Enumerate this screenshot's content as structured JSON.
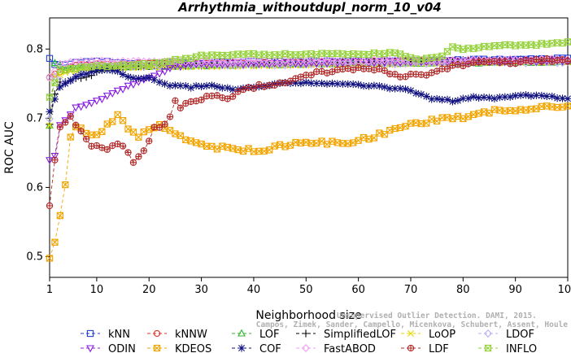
{
  "chart_data": {
    "type": "line",
    "title": "Arrhythmia_withoutdupl_norm_10_v04",
    "xlabel": "Neighborhood size",
    "ylabel": "ROC AUC",
    "xlim": [
      1,
      100
    ],
    "ylim": [
      0.47,
      0.845
    ],
    "xticks": [
      1,
      10,
      20,
      30,
      40,
      50,
      60,
      70,
      80,
      90,
      100
    ],
    "yticks": [
      0.5,
      0.6,
      0.7,
      0.8
    ],
    "grid": false,
    "legend_position": "bottom",
    "watermark": [
      "Campos, Zimek, Sander, Campello, Micenkova, Schubert, Assent, Houle",
      "Unsupervised Outlier Detection. DAMI, 2015."
    ],
    "series": [
      {
        "name": "kNN",
        "color": "#1f3fd6",
        "marker": "square",
        "dash": "4,3",
        "anchors": [
          [
            1,
            0.787
          ],
          [
            2,
            0.778
          ],
          [
            4,
            0.778
          ],
          [
            8,
            0.782
          ],
          [
            20,
            0.779
          ],
          [
            40,
            0.781
          ],
          [
            60,
            0.782
          ],
          [
            80,
            0.784
          ],
          [
            100,
            0.786
          ]
        ]
      },
      {
        "name": "kNNW",
        "color": "#e0302a",
        "marker": "circle",
        "dash": "4,3",
        "anchors": [
          [
            1,
            0.76
          ],
          [
            2,
            0.765
          ],
          [
            5,
            0.775
          ],
          [
            10,
            0.778
          ],
          [
            30,
            0.779
          ],
          [
            60,
            0.781
          ],
          [
            80,
            0.783
          ],
          [
            100,
            0.784
          ]
        ]
      },
      {
        "name": "LOF",
        "color": "#2bb52b",
        "marker": "triangle",
        "dash": "4,3",
        "anchors": [
          [
            1,
            0.69
          ],
          [
            2,
            0.78
          ],
          [
            4,
            0.77
          ],
          [
            8,
            0.772
          ],
          [
            20,
            0.775
          ],
          [
            40,
            0.777
          ],
          [
            60,
            0.779
          ],
          [
            80,
            0.78
          ],
          [
            100,
            0.781
          ]
        ]
      },
      {
        "name": "SimplifiedLOF",
        "color": "#000000",
        "marker": "plus",
        "dash": "4,3",
        "anchors": [
          [
            1,
            0.69
          ],
          [
            2,
            0.735
          ],
          [
            3,
            0.752
          ],
          [
            5,
            0.755
          ],
          [
            8,
            0.76
          ],
          [
            12,
            0.772
          ],
          [
            20,
            0.776
          ],
          [
            40,
            0.778
          ],
          [
            60,
            0.78
          ],
          [
            80,
            0.783
          ],
          [
            100,
            0.785
          ]
        ]
      },
      {
        "name": "LoOP",
        "color": "#e6d600",
        "marker": "x",
        "dash": "4,3",
        "anchors": [
          [
            1,
            0.69
          ],
          [
            2,
            0.76
          ],
          [
            5,
            0.768
          ],
          [
            10,
            0.772
          ],
          [
            30,
            0.775
          ],
          [
            60,
            0.778
          ],
          [
            100,
            0.782
          ]
        ]
      },
      {
        "name": "LDOF",
        "color": "#b9b2ef",
        "marker": "diamond",
        "dash": "4,3",
        "anchors": [
          [
            1,
            0.7
          ],
          [
            2,
            0.76
          ],
          [
            4,
            0.75
          ],
          [
            6,
            0.76
          ],
          [
            10,
            0.775
          ],
          [
            20,
            0.776
          ],
          [
            40,
            0.777
          ],
          [
            70,
            0.779
          ],
          [
            100,
            0.781
          ]
        ]
      },
      {
        "name": "ODIN",
        "color": "#8a1fe0",
        "marker": "invtriangle",
        "dash": "4,3",
        "anchors": [
          [
            1,
            0.64
          ],
          [
            2,
            0.645
          ],
          [
            3,
            0.69
          ],
          [
            6,
            0.715
          ],
          [
            10,
            0.725
          ],
          [
            14,
            0.74
          ],
          [
            20,
            0.758
          ],
          [
            25,
            0.775
          ],
          [
            30,
            0.778
          ],
          [
            60,
            0.781
          ],
          [
            100,
            0.783
          ]
        ]
      },
      {
        "name": "KDEOS",
        "color": "#f2a500",
        "marker": "boxx",
        "dash": "4,3",
        "anchors": [
          [
            1,
            0.5
          ],
          [
            2,
            0.522
          ],
          [
            3,
            0.56
          ],
          [
            4,
            0.605
          ],
          [
            5,
            0.67
          ],
          [
            6,
            0.69
          ],
          [
            8,
            0.68
          ],
          [
            10,
            0.675
          ],
          [
            12,
            0.69
          ],
          [
            14,
            0.705
          ],
          [
            16,
            0.685
          ],
          [
            18,
            0.675
          ],
          [
            20,
            0.682
          ],
          [
            22,
            0.69
          ],
          [
            25,
            0.68
          ],
          [
            28,
            0.665
          ],
          [
            30,
            0.66
          ],
          [
            35,
            0.656
          ],
          [
            38,
            0.655
          ],
          [
            40,
            0.652
          ],
          [
            45,
            0.66
          ],
          [
            50,
            0.666
          ],
          [
            55,
            0.664
          ],
          [
            60,
            0.668
          ],
          [
            65,
            0.678
          ],
          [
            70,
            0.69
          ],
          [
            75,
            0.698
          ],
          [
            80,
            0.702
          ],
          [
            85,
            0.71
          ],
          [
            90,
            0.713
          ],
          [
            95,
            0.714
          ],
          [
            100,
            0.72
          ]
        ]
      },
      {
        "name": "COF",
        "color": "#101080",
        "marker": "star",
        "dash": "4,3",
        "anchors": [
          [
            1,
            0.71
          ],
          [
            3,
            0.745
          ],
          [
            6,
            0.76
          ],
          [
            10,
            0.77
          ],
          [
            14,
            0.768
          ],
          [
            16,
            0.76
          ],
          [
            18,
            0.757
          ],
          [
            20,
            0.758
          ],
          [
            24,
            0.748
          ],
          [
            28,
            0.745
          ],
          [
            32,
            0.748
          ],
          [
            36,
            0.742
          ],
          [
            40,
            0.745
          ],
          [
            45,
            0.75
          ],
          [
            50,
            0.752
          ],
          [
            55,
            0.75
          ],
          [
            60,
            0.748
          ],
          [
            65,
            0.745
          ],
          [
            70,
            0.74
          ],
          [
            74,
            0.728
          ],
          [
            78,
            0.725
          ],
          [
            82,
            0.73
          ],
          [
            86,
            0.728
          ],
          [
            90,
            0.733
          ],
          [
            95,
            0.732
          ],
          [
            100,
            0.728
          ]
        ]
      },
      {
        "name": "FastABOD",
        "color": "#f4a0f4",
        "marker": "diamond",
        "dash": "4,3",
        "anchors": [
          [
            1,
            0.76
          ],
          [
            3,
            0.778
          ],
          [
            6,
            0.781
          ],
          [
            10,
            0.782
          ],
          [
            30,
            0.782
          ],
          [
            60,
            0.783
          ],
          [
            100,
            0.785
          ]
        ]
      },
      {
        "name": "LDF",
        "color": "#b02828",
        "marker": "circleplus",
        "dash": "4,3",
        "anchors": [
          [
            1,
            0.573
          ],
          [
            2,
            0.64
          ],
          [
            3,
            0.69
          ],
          [
            5,
            0.7
          ],
          [
            7,
            0.68
          ],
          [
            9,
            0.662
          ],
          [
            11,
            0.655
          ],
          [
            13,
            0.66
          ],
          [
            15,
            0.662
          ],
          [
            17,
            0.635
          ],
          [
            19,
            0.655
          ],
          [
            21,
            0.685
          ],
          [
            23,
            0.69
          ],
          [
            24,
            0.7
          ],
          [
            25,
            0.728
          ],
          [
            26,
            0.716
          ],
          [
            28,
            0.722
          ],
          [
            32,
            0.735
          ],
          [
            35,
            0.728
          ],
          [
            38,
            0.742
          ],
          [
            42,
            0.748
          ],
          [
            46,
            0.75
          ],
          [
            50,
            0.762
          ],
          [
            55,
            0.768
          ],
          [
            60,
            0.772
          ],
          [
            64,
            0.77
          ],
          [
            67,
            0.762
          ],
          [
            72,
            0.762
          ],
          [
            75,
            0.77
          ],
          [
            80,
            0.778
          ],
          [
            90,
            0.782
          ],
          [
            100,
            0.785
          ]
        ]
      },
      {
        "name": "INFLO",
        "color": "#96d23c",
        "marker": "hourglass",
        "dash": "4,3",
        "anchors": [
          [
            1,
            0.73
          ],
          [
            3,
            0.77
          ],
          [
            6,
            0.772
          ],
          [
            10,
            0.775
          ],
          [
            20,
            0.778
          ],
          [
            26,
            0.785
          ],
          [
            30,
            0.79
          ],
          [
            40,
            0.792
          ],
          [
            50,
            0.793
          ],
          [
            60,
            0.792
          ],
          [
            66,
            0.795
          ],
          [
            72,
            0.785
          ],
          [
            76,
            0.79
          ],
          [
            78,
            0.802
          ],
          [
            80,
            0.8
          ],
          [
            84,
            0.803
          ],
          [
            88,
            0.806
          ],
          [
            92,
            0.805
          ],
          [
            96,
            0.808
          ],
          [
            100,
            0.81
          ]
        ]
      }
    ]
  }
}
